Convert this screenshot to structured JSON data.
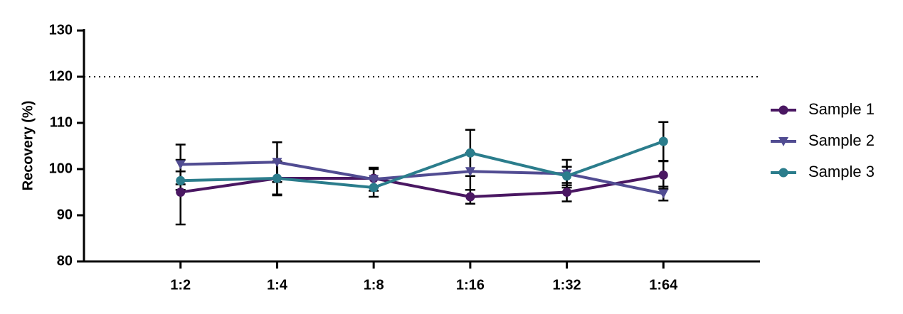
{
  "chart_data": {
    "type": "line",
    "y_label": "Recovery (%)",
    "categories": [
      "1:2",
      "1:4",
      "1:8",
      "1:16",
      "1:32",
      "1:64"
    ],
    "series": [
      {
        "name": "Sample 1",
        "color": "#4a1762",
        "marker": "circle",
        "values": [
          95,
          98,
          98,
          94,
          95,
          98.7
        ],
        "errors": [
          7,
          3.7,
          2,
          1.5,
          2,
          3
        ]
      },
      {
        "name": "Sample 2",
        "color": "#514c92",
        "marker": "triangle-down",
        "values": [
          101,
          101.5,
          97.8,
          99.5,
          99,
          94.7
        ],
        "errors": [
          4.3,
          4.3,
          2.5,
          4,
          3,
          1.5
        ]
      },
      {
        "name": "Sample 3",
        "color": "#2b7d8c",
        "marker": "circle",
        "values": [
          97.5,
          98,
          96,
          103.5,
          98.5,
          106
        ],
        "errors": [
          2,
          3.5,
          2,
          5,
          2,
          4.2
        ]
      }
    ],
    "error_color": "#000000",
    "reference_line": 120,
    "ylim": [
      80,
      130
    ],
    "yticks": [
      80,
      90,
      100,
      110,
      120,
      130
    ],
    "legend": "right"
  }
}
